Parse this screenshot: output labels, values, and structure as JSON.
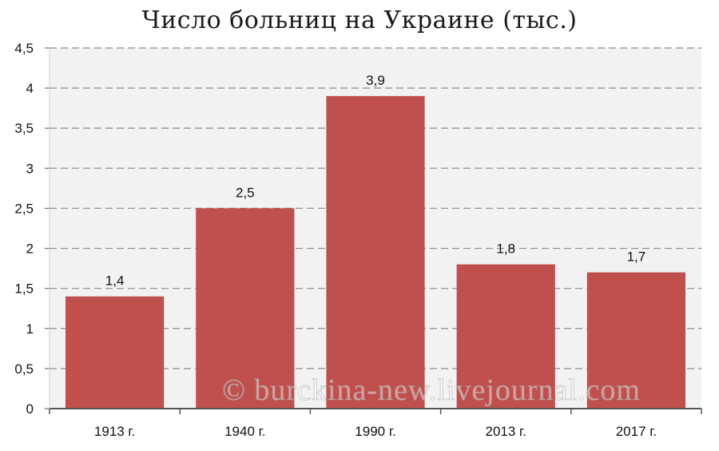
{
  "chart_data": {
    "type": "bar",
    "title": "Число больниц на Украине (тыс.)",
    "categories": [
      "1913 г.",
      "1940 г.",
      "1990 г.",
      "2013 г.",
      "2017 г."
    ],
    "values": [
      1.4,
      2.5,
      3.9,
      1.8,
      1.7
    ],
    "value_labels": [
      "1,4",
      "2,5",
      "3,9",
      "1,8",
      "1,7"
    ],
    "ylim": [
      0,
      4.5
    ],
    "yticks": [
      {
        "value": 0,
        "label": "0"
      },
      {
        "value": 0.5,
        "label": "0,5"
      },
      {
        "value": 1,
        "label": "1"
      },
      {
        "value": 1.5,
        "label": "1,5"
      },
      {
        "value": 2,
        "label": "2"
      },
      {
        "value": 2.5,
        "label": "2,5"
      },
      {
        "value": 3,
        "label": "3"
      },
      {
        "value": 3.5,
        "label": "3,5"
      },
      {
        "value": 4,
        "label": "4"
      },
      {
        "value": 4.5,
        "label": "4,5"
      }
    ],
    "grid": true,
    "bar_color": "#c0504d",
    "plot_background": "#f2f2f2"
  },
  "watermark": "© burckina-new.livejournal.com"
}
